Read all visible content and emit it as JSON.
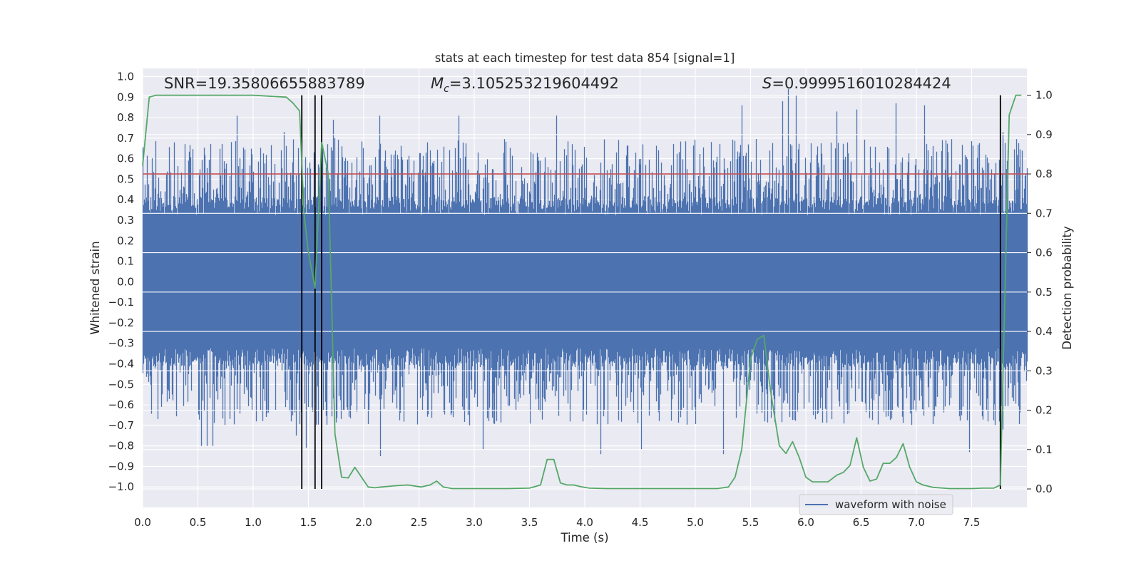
{
  "chart_data": {
    "type": "line",
    "title": "stats at each timestep for test data 854 [signal=1]",
    "xlabel": "Time (s)",
    "ylabel": "Whitened strain",
    "ylabel_right": "Detection probability",
    "xlim": [
      0,
      8
    ],
    "ylim": [
      -1.1,
      1.04
    ],
    "ylim_right": [
      -0.047,
      1.068
    ],
    "x_ticks": [
      "0.0",
      "0.5",
      "1.0",
      "1.5",
      "2.0",
      "2.5",
      "3.0",
      "3.5",
      "4.0",
      "4.5",
      "5.0",
      "5.5",
      "6.0",
      "6.5",
      "7.0",
      "7.5"
    ],
    "y_ticks": [
      "1.0",
      "0.9",
      "0.8",
      "0.7",
      "0.6",
      "0.5",
      "0.4",
      "0.3",
      "0.2",
      "0.1",
      "0.0",
      "−0.1",
      "−0.2",
      "−0.3",
      "−0.4",
      "−0.5",
      "−0.6",
      "−0.7",
      "−0.8",
      "−0.9",
      "−1.0"
    ],
    "y_right_ticks": [
      "1.0",
      "0.9",
      "0.8",
      "0.7",
      "0.6",
      "0.5",
      "0.4",
      "0.3",
      "0.2",
      "0.1",
      "0.0"
    ],
    "grid": true,
    "legend": {
      "placement": "lower-right",
      "entries": [
        {
          "label": "waveform with noise",
          "color": "#4c72b0"
        }
      ]
    },
    "stats": {
      "snr": {
        "name": "SNR",
        "value": "19.35806655883789"
      },
      "mc": {
        "name": "M",
        "subscript": "c",
        "value": "3.105253219604492"
      },
      "s": {
        "name": "S",
        "value": "0.9999516010284424"
      }
    },
    "threshold": {
      "value": 0.8,
      "axis": "right",
      "color": "#c44e52"
    },
    "markers": {
      "x": [
        1.44,
        1.56,
        1.62,
        7.76
      ],
      "color": "#000000"
    },
    "waveform": {
      "name": "waveform with noise",
      "color": "#4c72b0",
      "base_amplitude": 0.36,
      "peaks": [
        {
          "x": 0.53,
          "y": -0.8
        },
        {
          "x": 0.58,
          "y": -0.8
        },
        {
          "x": 0.63,
          "y": -0.8
        },
        {
          "x": 0.85,
          "y": 0.81
        },
        {
          "x": 1.28,
          "y": 0.73
        },
        {
          "x": 1.39,
          "y": -0.75
        },
        {
          "x": 1.48,
          "y": -0.81
        },
        {
          "x": 1.72,
          "y": 0.79
        },
        {
          "x": 2.14,
          "y": 0.81
        },
        {
          "x": 2.15,
          "y": -0.85
        },
        {
          "x": 2.86,
          "y": 0.81
        },
        {
          "x": 3.08,
          "y": -0.82
        },
        {
          "x": 3.74,
          "y": 0.81
        },
        {
          "x": 4.14,
          "y": -0.84
        },
        {
          "x": 4.51,
          "y": -0.82
        },
        {
          "x": 4.52,
          "y": 0.67
        },
        {
          "x": 5.25,
          "y": -0.84
        },
        {
          "x": 5.42,
          "y": 0.86
        },
        {
          "x": 5.79,
          "y": 0.88
        },
        {
          "x": 5.84,
          "y": 0.94
        },
        {
          "x": 5.91,
          "y": 0.91
        },
        {
          "x": 6.28,
          "y": 0.83
        },
        {
          "x": 6.46,
          "y": 0.84
        },
        {
          "x": 6.81,
          "y": 0.87
        },
        {
          "x": 7.07,
          "y": 0.86
        },
        {
          "x": 7.48,
          "y": -0.83
        },
        {
          "x": 7.78,
          "y": -0.72
        },
        {
          "x": 7.78,
          "y": 0.73
        }
      ]
    },
    "series": [
      {
        "name": "",
        "color": "#55a868",
        "axis": "right",
        "x": [
          0.0,
          0.06,
          0.12,
          0.3,
          0.6,
          1.0,
          1.3,
          1.36,
          1.42,
          1.46,
          1.5,
          1.56,
          1.62,
          1.68,
          1.74,
          1.8,
          1.86,
          1.92,
          1.98,
          2.04,
          2.1,
          2.16,
          2.28,
          2.4,
          2.52,
          2.6,
          2.66,
          2.72,
          2.8,
          3.0,
          3.3,
          3.5,
          3.6,
          3.66,
          3.72,
          3.78,
          3.84,
          3.9,
          3.96,
          4.04,
          4.2,
          4.5,
          4.8,
          5.0,
          5.2,
          5.3,
          5.36,
          5.42,
          5.5,
          5.56,
          5.62,
          5.68,
          5.76,
          5.82,
          5.88,
          5.94,
          6.0,
          6.06,
          6.2,
          6.28,
          6.34,
          6.4,
          6.46,
          6.52,
          6.58,
          6.64,
          6.7,
          6.76,
          6.82,
          6.88,
          6.94,
          7.0,
          7.06,
          7.15,
          7.3,
          7.5,
          7.6,
          7.7,
          7.76,
          7.8,
          7.84,
          7.9,
          7.95
        ],
        "y": [
          0.82,
          0.995,
          1.0,
          1.0,
          1.0,
          1.0,
          0.995,
          0.98,
          0.96,
          0.7,
          0.6,
          0.51,
          0.88,
          0.8,
          0.14,
          0.03,
          0.028,
          0.055,
          0.03,
          0.005,
          0.003,
          0.005,
          0.008,
          0.01,
          0.005,
          0.01,
          0.02,
          0.005,
          0.001,
          0.001,
          0.001,
          0.002,
          0.01,
          0.075,
          0.075,
          0.015,
          0.01,
          0.01,
          0.006,
          0.002,
          0.001,
          0.001,
          0.001,
          0.001,
          0.001,
          0.005,
          0.03,
          0.1,
          0.33,
          0.38,
          0.39,
          0.25,
          0.11,
          0.09,
          0.12,
          0.08,
          0.03,
          0.018,
          0.018,
          0.035,
          0.042,
          0.06,
          0.13,
          0.055,
          0.02,
          0.025,
          0.065,
          0.065,
          0.08,
          0.115,
          0.055,
          0.018,
          0.01,
          0.004,
          0.001,
          0.001,
          0.002,
          0.002,
          0.01,
          0.48,
          0.95,
          1.0,
          1.0
        ]
      }
    ]
  }
}
